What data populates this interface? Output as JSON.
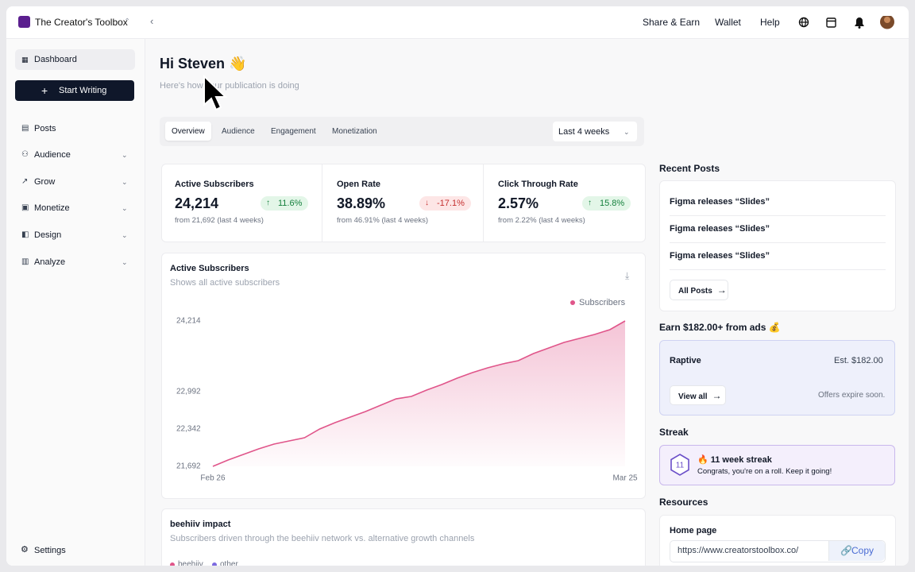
{
  "header": {
    "workspace": "The Creator's Toolbox",
    "nav": [
      "Share & Earn",
      "Wallet",
      "Help"
    ]
  },
  "sidebar": {
    "dashboard": "Dashboard",
    "button": "Start Writing",
    "items": [
      "Posts",
      "Audience",
      "Grow",
      "Monetize",
      "Design",
      "Analyze"
    ],
    "footer": "Settings"
  },
  "main": {
    "greeting": "Hi Steven 👋",
    "subtitle": "Here's how your publication is doing",
    "tabs": [
      "Overview",
      "Audience",
      "Engagement",
      "Monetization"
    ],
    "period": "Last 4 weeks",
    "stats": [
      {
        "label": "Active Subscribers",
        "value": "24,214",
        "change": "11.6%",
        "note": "from 21,692 (last 4 weeks)"
      },
      {
        "label": "Open Rate",
        "value": "38.89%",
        "change": "-17.1%",
        "note": "from 46.91% (last 4 weeks)"
      },
      {
        "label": "Click Through Rate",
        "value": "2.57%",
        "change": "15.8%",
        "note": "from 2.22% (last 4 weeks)"
      }
    ]
  },
  "chart_data": {
    "type": "line",
    "title": "Active Subscribers",
    "subtitle": "Shows all active subscribers",
    "categories": [
      "Feb 26",
      null,
      null,
      null,
      null,
      null,
      null,
      null,
      null,
      null,
      null,
      null,
      null,
      null,
      null,
      null,
      null,
      null,
      null,
      null,
      null,
      null,
      null,
      null,
      null,
      null,
      null,
      "Mar 25"
    ],
    "series": [
      {
        "name": "Subscribers",
        "color": "#e0558a",
        "values": [
          21692,
          21802,
          21899,
          21995,
          22078,
          22133,
          22188,
          22340,
          22450,
          22546,
          22643,
          22753,
          22863,
          22905,
          23015,
          23111,
          23222,
          23318,
          23401,
          23470,
          23525,
          23649,
          23745,
          23842,
          23911,
          23980,
          24063,
          24214
        ]
      }
    ],
    "ylim": [
      21692,
      24214
    ],
    "yticks": [
      {
        "value": 21692,
        "label": "21,692"
      },
      {
        "value": 22342,
        "label": "22,342"
      },
      {
        "value": 22992,
        "label": "22,992"
      },
      {
        "value": 24214,
        "label": "24,214"
      }
    ]
  },
  "impact": {
    "title": "beehiiv impact",
    "subtitle": "Subscribers driven through the beehiiv network vs. alternative growth channels",
    "legend": [
      "beehiiv",
      "other"
    ]
  },
  "right": {
    "recent": {
      "title": "Recent Posts",
      "posts": [
        "Figma releases “Slides”",
        "Figma releases “Slides”",
        "Figma releases “Slides”"
      ],
      "button": "All Posts"
    },
    "earn": {
      "title": "Earn $182.00+ from ads 💰",
      "partner": "Raptive",
      "estimate": "Est. $182.00",
      "button": "View all",
      "note": "Offers expire soon."
    },
    "streak": {
      "title": "Streak",
      "count": "11",
      "headline": "🔥 11 week streak",
      "message": "Congrats, you're on a roll. Keep it going!"
    },
    "resources": {
      "title": "Resources",
      "label": "Home page",
      "url": "https://www.creatorstoolbox.co/",
      "button": "Copy"
    }
  }
}
